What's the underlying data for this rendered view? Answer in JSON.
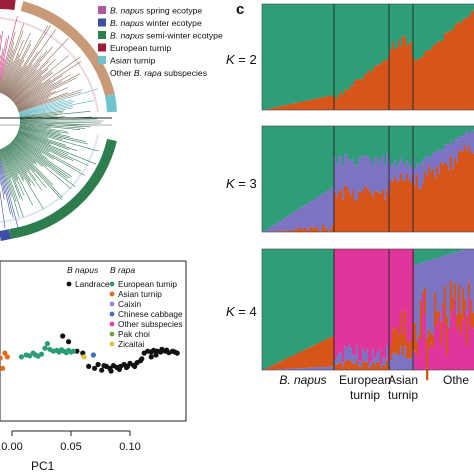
{
  "panel_c_label": "c",
  "legend_tree": [
    {
      "label": "B. napus spring ecotype",
      "color": "#b0569b",
      "italic_part": "B. napus"
    },
    {
      "label": "B. napus winter ecotype",
      "color": "#3b4fa3",
      "italic_part": "B. napus"
    },
    {
      "label": "B. napus semi-winter ecotype",
      "color": "#2e7d4f",
      "italic_part": "B. napus"
    },
    {
      "label": "European turnip",
      "color": "#9b1d3a"
    },
    {
      "label": "Asian turnip",
      "color": "#6ec3cf"
    },
    {
      "label": "Other B. rapa subspecies",
      "color": "#c89a78"
    }
  ],
  "pca": {
    "group_napus_title": "B napus",
    "group_rapa_title": "B rapa",
    "napus_items": [
      {
        "label": "Landrace",
        "color": "#111111"
      }
    ],
    "rapa_items": [
      {
        "label": "European turnip",
        "color": "#2a9d76"
      },
      {
        "label": "Asian turnip",
        "color": "#e06c1e"
      },
      {
        "label": "Caixin",
        "color": "#8c8fd8"
      },
      {
        "label": "Chinese cabbage",
        "color": "#3c74b6"
      },
      {
        "label": "Other subspecies",
        "color": "#e8439a"
      },
      {
        "label": "Pak choi",
        "color": "#7a9e3a"
      },
      {
        "label": "Zicaitai",
        "color": "#e0c23a"
      }
    ],
    "xticks": [
      "0.00",
      "0.05",
      "0.10"
    ],
    "xlabel": "PC1"
  },
  "structure": {
    "panels": [
      {
        "k_prefix": "K",
        "k_value": "= 2"
      },
      {
        "k_prefix": "K",
        "k_value": "= 3"
      },
      {
        "k_prefix": "K",
        "k_value": "= 4"
      }
    ],
    "group_labels": [
      {
        "line1": "B. napus",
        "line2": "",
        "italic": true
      },
      {
        "line1": "European",
        "line2": "turnip",
        "italic": false
      },
      {
        "line1": "Asian",
        "line2": "turnip",
        "italic": false
      },
      {
        "line1": "Othe",
        "line2": "",
        "italic": false
      }
    ],
    "colors": {
      "green": "#2f9e78",
      "orange": "#d6551a",
      "purple": "#7d73c3",
      "pink": "#e0359a"
    }
  },
  "chart_data": {
    "type": "scatter",
    "x_label": "PC1",
    "x_ticks": [
      0.0,
      0.05,
      0.1
    ],
    "series": [
      {
        "name": "Landrace",
        "color": "#111111",
        "points": [
          [
            0.043,
            0.5
          ],
          [
            0.048,
            0.35
          ],
          [
            0.055,
            0.1
          ],
          [
            0.06,
            0.05
          ],
          [
            0.065,
            -0.3
          ],
          [
            0.07,
            -0.35
          ],
          [
            0.073,
            -0.25
          ],
          [
            0.076,
            -0.4
          ],
          [
            0.08,
            -0.3
          ],
          [
            0.083,
            -0.35
          ],
          [
            0.086,
            -0.28
          ],
          [
            0.089,
            -0.33
          ],
          [
            0.092,
            -0.3
          ],
          [
            0.095,
            -0.25
          ],
          [
            0.098,
            -0.3
          ],
          [
            0.1,
            -0.22
          ],
          [
            0.103,
            -0.27
          ],
          [
            0.106,
            -0.2
          ],
          [
            0.109,
            -0.15
          ],
          [
            0.112,
            0.05
          ],
          [
            0.115,
            0.1
          ],
          [
            0.118,
            0.08
          ],
          [
            0.12,
            0.12
          ],
          [
            0.123,
            0.1
          ],
          [
            0.126,
            0.08
          ],
          [
            0.13,
            0.1
          ],
          [
            0.133,
            0.06
          ],
          [
            0.136,
            0.1
          ],
          [
            0.138,
            0.08
          ],
          [
            0.14,
            0.05
          ],
          [
            0.118,
            -0.05
          ],
          [
            0.122,
            0.0
          ],
          [
            0.127,
            0.15
          ],
          [
            0.131,
            0.13
          ],
          [
            0.078,
            -0.28
          ],
          [
            0.084,
            -0.42
          ],
          [
            0.091,
            -0.38
          ],
          [
            0.097,
            -0.33
          ],
          [
            0.104,
            -0.3
          ],
          [
            0.11,
            -0.1
          ]
        ]
      },
      {
        "name": "European turnip",
        "color": "#2a9d76",
        "points": [
          [
            0.008,
            -0.05
          ],
          [
            0.012,
            0.0
          ],
          [
            0.015,
            -0.02
          ],
          [
            0.018,
            0.05
          ],
          [
            0.02,
            0.0
          ],
          [
            0.022,
            -0.03
          ],
          [
            0.025,
            0.02
          ],
          [
            0.028,
            0.18
          ],
          [
            0.03,
            0.3
          ],
          [
            0.032,
            0.15
          ],
          [
            0.035,
            0.1
          ],
          [
            0.038,
            0.12
          ],
          [
            0.04,
            0.08
          ],
          [
            0.042,
            0.14
          ],
          [
            0.044,
            0.1
          ],
          [
            0.046,
            0.06
          ],
          [
            0.048,
            0.12
          ],
          [
            0.05,
            0.08
          ],
          [
            0.052,
            0.1
          ]
        ]
      },
      {
        "name": "Asian turnip",
        "color": "#e06c1e",
        "points": [
          [
            -0.012,
            0.0
          ],
          [
            -0.01,
            -0.08
          ],
          [
            -0.006,
            0.05
          ],
          [
            -0.004,
            -0.05
          ],
          [
            -0.014,
            -0.3
          ],
          [
            -0.008,
            -0.35
          ]
        ]
      },
      {
        "name": "Chinese cabbage",
        "color": "#3c74b6",
        "points": [
          [
            0.069,
            0.0
          ]
        ]
      },
      {
        "name": "Zicaitai",
        "color": "#e0c23a",
        "points": [
          [
            0.061,
            -0.05
          ]
        ]
      }
    ]
  }
}
